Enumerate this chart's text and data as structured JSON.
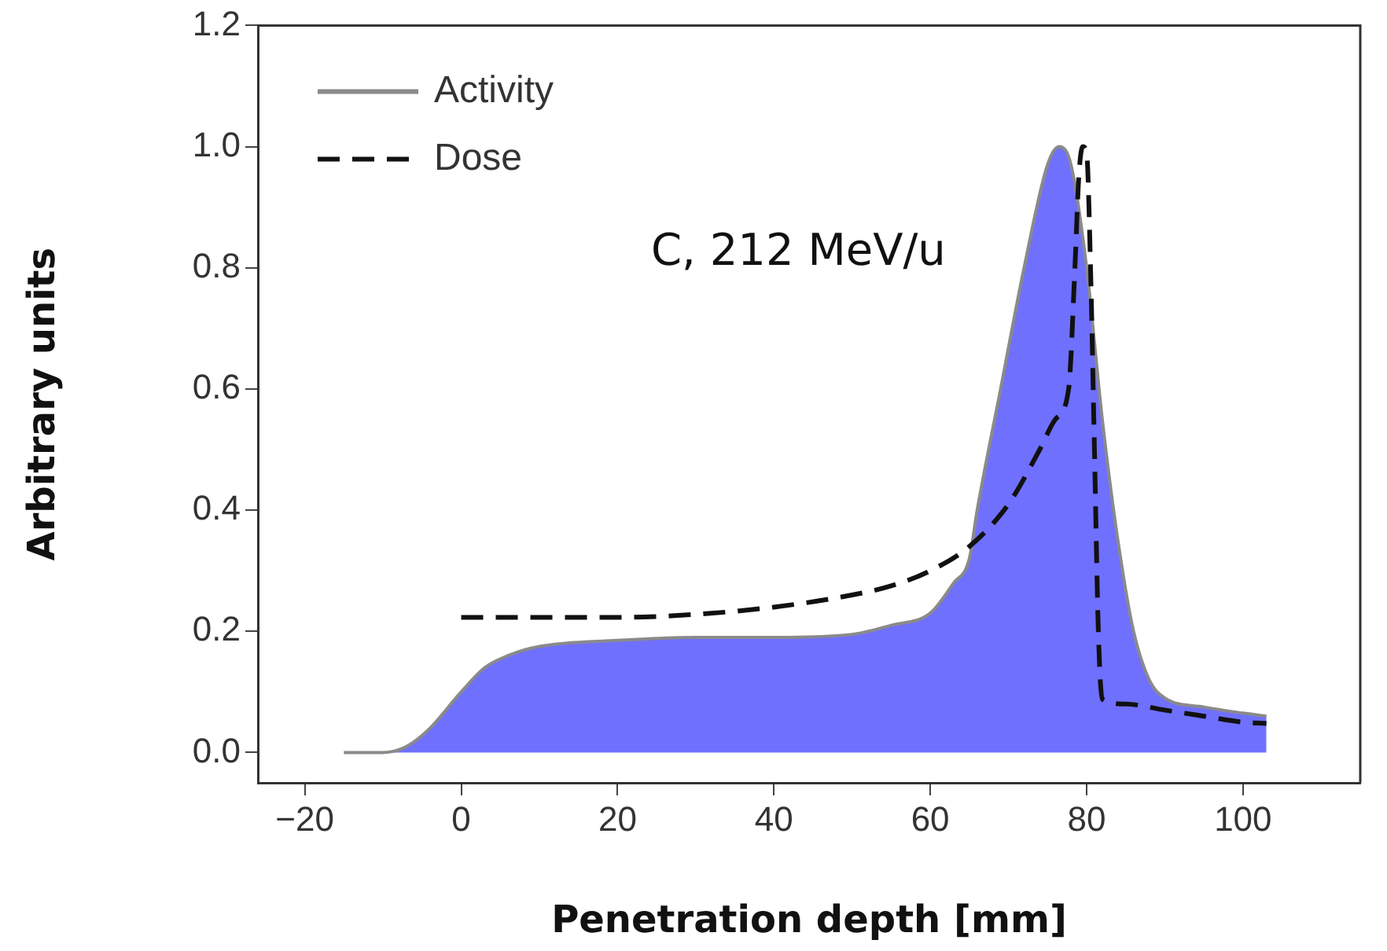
{
  "chart_data": {
    "type": "line",
    "xlabel": "Penetration depth [mm]",
    "ylabel": "Arbitrary units",
    "annotations": [
      "C, 212 MeV/u"
    ],
    "xlim": [
      -26,
      115
    ],
    "xticks": [
      {
        "value": -20,
        "label": "−20"
      },
      0,
      20,
      40,
      60,
      80,
      100
    ],
    "ylim": [
      -0.05,
      1.2
    ],
    "yticks": [
      {
        "value": 0,
        "label": "0.0"
      },
      0.2,
      0.4,
      0.6,
      0.8,
      {
        "value": 1,
        "label": "1.0"
      },
      1.2
    ],
    "grid": false,
    "legend": "top left",
    "marker": "none",
    "series": [
      {
        "name": "Activity",
        "type": "area",
        "color": "#7070ff",
        "line_style": "solid",
        "x": [
          -15,
          -10,
          -7,
          -4,
          0,
          3,
          6,
          10,
          20,
          30,
          40,
          50,
          55,
          60,
          63,
          65,
          66,
          69,
          72,
          75,
          76.5,
          78,
          80,
          82,
          84,
          86,
          88,
          90,
          95,
          100,
          103
        ],
        "values": [
          0,
          0,
          0.01,
          0.04,
          0.1,
          0.14,
          0.16,
          0.175,
          0.185,
          0.19,
          0.19,
          0.195,
          0.21,
          0.23,
          0.28,
          0.32,
          0.4,
          0.6,
          0.8,
          0.97,
          1.0,
          0.97,
          0.8,
          0.55,
          0.35,
          0.2,
          0.12,
          0.09,
          0.075,
          0.065,
          0.06
        ]
      },
      {
        "name": "Dose",
        "type": "line",
        "color": "#111111",
        "line_style": "dashed",
        "x": [
          0,
          20,
          30,
          40,
          50,
          55,
          60,
          65,
          70,
          74,
          76,
          77.7,
          78.5,
          79,
          79.5,
          80,
          80.5,
          81,
          81.5,
          82,
          85,
          90,
          95,
          100,
          103
        ],
        "values": [
          0.223,
          0.223,
          0.228,
          0.24,
          0.26,
          0.275,
          0.3,
          0.34,
          0.41,
          0.5,
          0.55,
          0.6,
          0.8,
          0.95,
          1.0,
          0.99,
          0.8,
          0.5,
          0.2,
          0.088,
          0.08,
          0.07,
          0.06,
          0.05,
          0.048
        ]
      }
    ]
  }
}
